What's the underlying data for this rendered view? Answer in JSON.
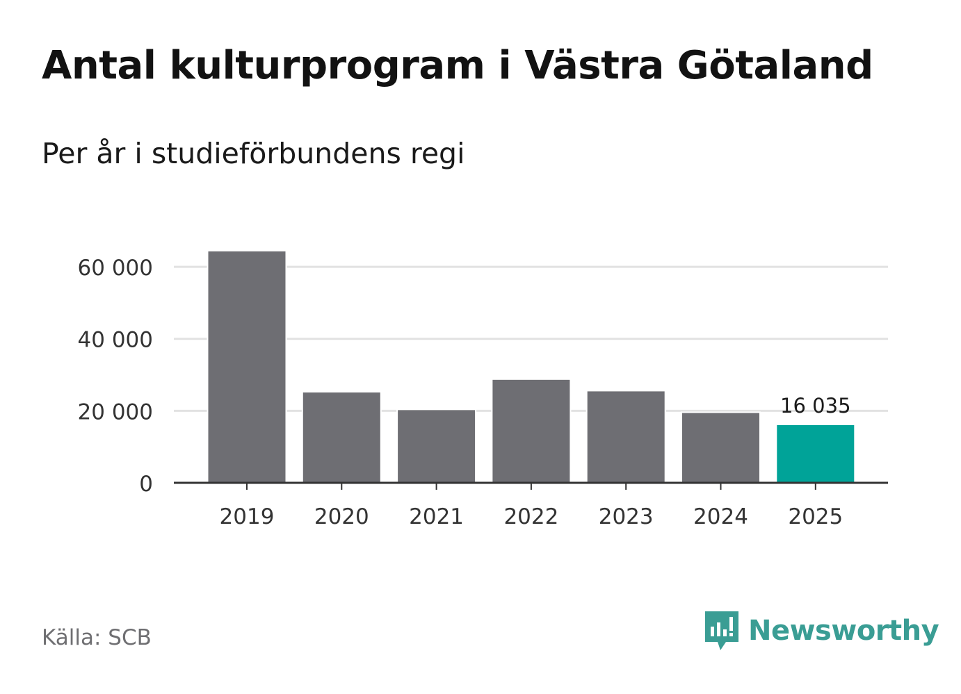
{
  "title": "Antal kulturprogram i Västra Götaland",
  "subtitle": "Per år i studieförbundens regi",
  "source": "Källa: SCB",
  "brand": {
    "name": "Newsworthy",
    "icon": "newsworthy-logo-icon"
  },
  "colors": {
    "bar": "#6e6e73",
    "highlight": "#00a398",
    "grid": "#e2e2e2",
    "axis": "#333333",
    "brand": "#3a9d94"
  },
  "chart_data": {
    "type": "bar",
    "categories": [
      "2019",
      "2020",
      "2021",
      "2022",
      "2023",
      "2024",
      "2025"
    ],
    "values": [
      64300,
      25100,
      20200,
      28600,
      25400,
      19400,
      16035
    ],
    "highlight_index": 6,
    "data_labels": [
      {
        "index": 6,
        "text": "16 035"
      }
    ],
    "yticks": [
      0,
      20000,
      40000,
      60000
    ],
    "ytick_labels": [
      "0",
      "20 000",
      "40 000",
      "60 000"
    ],
    "ylim": [
      0,
      66000
    ],
    "grid": true,
    "xlabel": "",
    "ylabel": ""
  }
}
